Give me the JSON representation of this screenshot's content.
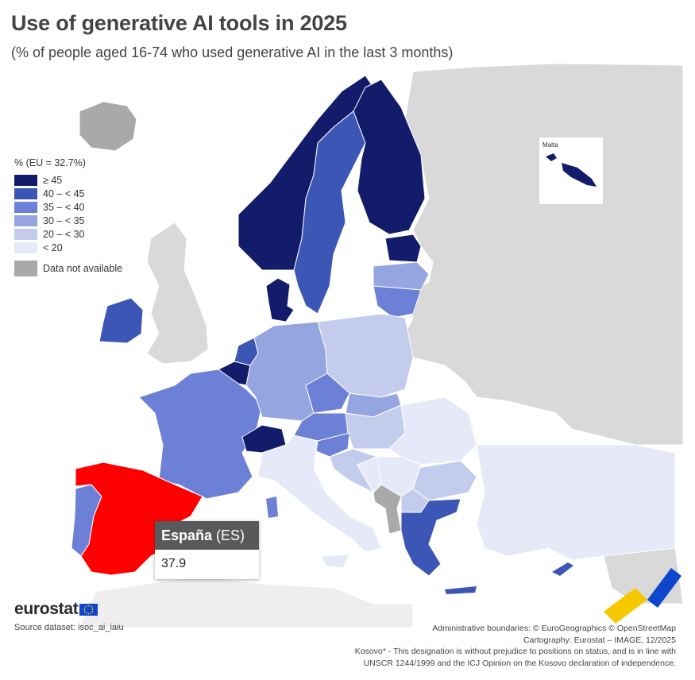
{
  "title": "Use of generative AI tools in 2025",
  "subtitle": "(% of people aged 16-74 who used generative AI in the last 3 months)",
  "legend": {
    "title": "% (EU = 32.7%)",
    "classes": [
      {
        "label": "≥ 45",
        "color": "#131c6b"
      },
      {
        "label": "40 – < 45",
        "color": "#3b56b5"
      },
      {
        "label": "35 – < 40",
        "color": "#6b80d6"
      },
      {
        "label": "30 – < 35",
        "color": "#95a5e0"
      },
      {
        "label": "20 – < 30",
        "color": "#c4ccee"
      },
      {
        "label": "< 20",
        "color": "#e6e9f8"
      }
    ],
    "not_available": {
      "label": "Data not available",
      "color": "#a9a9a9"
    }
  },
  "inset": {
    "label": "Malta"
  },
  "tooltip": {
    "country": "España",
    "code": "(ES)",
    "value": "37.9"
  },
  "highlight_color": "#ff0000",
  "logo": {
    "text": "eurostat"
  },
  "source": "Source dataset: isoc_ai_iaiu",
  "footer": [
    "Administrative boundaries: © EuroGeographics © OpenStreetMap",
    "Cartography: Eurostat – IMAGE, 12/2025",
    "Kosovo* - This designation is without prejudice to positions on status, and is in line with",
    "UNSCR 1244/1999 and the ICJ Opinion on the Kosovo declaration of independence."
  ],
  "map_data": {
    "regions": [
      {
        "name": "Norway",
        "class": "≥ 45"
      },
      {
        "name": "Finland",
        "class": "≥ 45"
      },
      {
        "name": "Sweden",
        "class": "40 – < 45"
      },
      {
        "name": "Denmark",
        "class": "≥ 45"
      },
      {
        "name": "Estonia",
        "class": "≥ 45"
      },
      {
        "name": "Latvia",
        "class": "30 – < 35"
      },
      {
        "name": "Lithuania",
        "class": "35 – < 40"
      },
      {
        "name": "Ireland",
        "class": "40 – < 45"
      },
      {
        "name": "Netherlands",
        "class": "40 – < 45"
      },
      {
        "name": "Belgium",
        "class": "≥ 45"
      },
      {
        "name": "Luxembourg",
        "class": "≥ 45"
      },
      {
        "name": "France",
        "class": "35 – < 40"
      },
      {
        "name": "Germany",
        "class": "30 – < 35"
      },
      {
        "name": "Poland",
        "class": "20 – < 30"
      },
      {
        "name": "Czechia",
        "class": "35 – < 40"
      },
      {
        "name": "Slovakia",
        "class": "30 – < 35"
      },
      {
        "name": "Austria",
        "class": "35 – < 40"
      },
      {
        "name": "Switzerland",
        "class": "≥ 45"
      },
      {
        "name": "Slovenia",
        "class": "35 – < 40"
      },
      {
        "name": "Hungary",
        "class": "20 – < 30"
      },
      {
        "name": "Croatia",
        "class": "20 – < 30"
      },
      {
        "name": "Serbia",
        "class": "< 20"
      },
      {
        "name": "Bosnia and Herzegovina",
        "class": "< 20"
      },
      {
        "name": "Romania",
        "class": "< 20"
      },
      {
        "name": "Bulgaria",
        "class": "20 – < 30"
      },
      {
        "name": "North Macedonia",
        "class": "20 – < 30"
      },
      {
        "name": "Greece",
        "class": "40 – < 45"
      },
      {
        "name": "Cyprus",
        "class": "40 – < 45"
      },
      {
        "name": "Malta",
        "class": "≥ 45"
      },
      {
        "name": "Italy",
        "class": "< 20"
      },
      {
        "name": "Portugal",
        "class": "35 – < 40"
      },
      {
        "name": "Spain",
        "class": "35 – < 40",
        "value": 37.9,
        "highlighted": true
      },
      {
        "name": "Türkiye",
        "class": "< 20"
      },
      {
        "name": "Montenegro",
        "class": "Data not available"
      },
      {
        "name": "Albania",
        "class": "Data not available"
      },
      {
        "name": "Kosovo*",
        "class": "Data not available"
      },
      {
        "name": "Iceland",
        "class": "Data not available"
      },
      {
        "name": "United Kingdom",
        "class": "Data not available"
      }
    ]
  }
}
